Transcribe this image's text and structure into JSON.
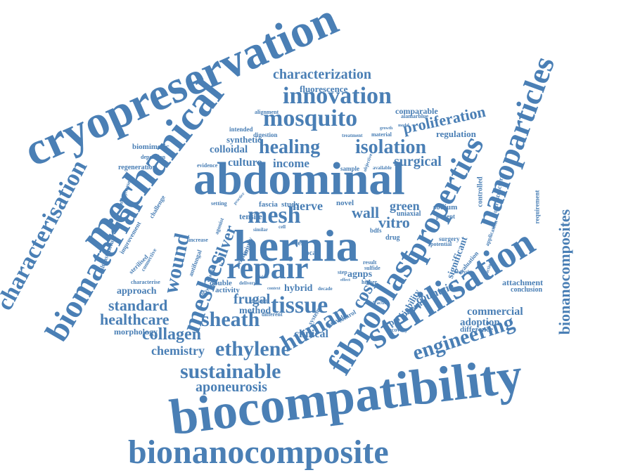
{
  "colors": {
    "word": "#4a7fb5",
    "background": "#ffffff"
  },
  "words": [
    {
      "id": "cryopreservation",
      "text": "cryopreservation"
    },
    {
      "id": "mechanical",
      "text": "mechanical"
    },
    {
      "id": "abdominal",
      "text": "abdominal"
    },
    {
      "id": "hernia",
      "text": "hernia"
    },
    {
      "id": "repair",
      "text": "repair"
    },
    {
      "id": "biocompatibility",
      "text": "biocompatibility"
    },
    {
      "id": "bionanocomposite",
      "text": "bionanocomposite"
    },
    {
      "id": "sterilisation",
      "text": "sterilisation"
    },
    {
      "id": "fibroblast",
      "text": "fibroblast"
    },
    {
      "id": "nanoparticles",
      "text": "nanoparticles"
    },
    {
      "id": "properties",
      "text": "properties"
    },
    {
      "id": "biomaterial",
      "text": "biomaterial"
    },
    {
      "id": "characterisation",
      "text": "characterisation"
    },
    {
      "id": "bionanocomposites",
      "text": "bionanocomposites"
    },
    {
      "id": "innovation",
      "text": "innovation"
    },
    {
      "id": "mosquito",
      "text": "mosquito"
    },
    {
      "id": "characterization",
      "text": "characterization"
    },
    {
      "id": "healing",
      "text": "healing"
    },
    {
      "id": "isolation",
      "text": "isolation"
    },
    {
      "id": "mesh",
      "text": "mesh"
    },
    {
      "id": "meshes",
      "text": "meshes"
    },
    {
      "id": "silver",
      "text": "silver"
    },
    {
      "id": "tissue",
      "text": "tissue"
    },
    {
      "id": "human",
      "text": "human"
    },
    {
      "id": "cost",
      "text": "cost"
    },
    {
      "id": "sheath",
      "text": "sheath"
    },
    {
      "id": "ethylene",
      "text": "ethylene"
    },
    {
      "id": "sustainable",
      "text": "sustainable"
    },
    {
      "id": "aponeurosis",
      "text": "aponeurosis"
    },
    {
      "id": "engineering",
      "text": "engineering"
    },
    {
      "id": "wound",
      "text": "wound"
    },
    {
      "id": "proliferation",
      "text": "proliferation"
    },
    {
      "id": "surgical",
      "text": "surgical"
    },
    {
      "id": "culture",
      "text": "culture"
    },
    {
      "id": "income",
      "text": "income"
    },
    {
      "id": "nerve",
      "text": "nerve"
    },
    {
      "id": "wall",
      "text": "wall"
    },
    {
      "id": "green",
      "text": "green"
    },
    {
      "id": "vitro",
      "text": "vitro"
    },
    {
      "id": "standard",
      "text": "standard"
    },
    {
      "id": "healthcare",
      "text": "healthcare"
    },
    {
      "id": "collagen",
      "text": "collagen"
    },
    {
      "id": "chemistry",
      "text": "chemistry"
    },
    {
      "id": "frugal",
      "text": "frugal"
    },
    {
      "id": "method",
      "text": "method"
    },
    {
      "id": "clinical",
      "text": "clinical"
    },
    {
      "id": "commercial",
      "text": "commercial"
    },
    {
      "id": "adoption",
      "text": "adoption"
    },
    {
      "id": "countrie",
      "text": "countrie"
    },
    {
      "id": "colloidal",
      "text": "colloidal"
    },
    {
      "id": "synthetic",
      "text": "synthetic"
    },
    {
      "id": "fluorescence",
      "text": "fluorescence"
    },
    {
      "id": "comparable",
      "text": "comparable"
    },
    {
      "id": "regulation",
      "text": "regulation"
    },
    {
      "id": "approach",
      "text": "approach"
    },
    {
      "id": "attachment",
      "text": "attachment"
    },
    {
      "id": "hybrid",
      "text": "hybrid"
    },
    {
      "id": "agnps",
      "text": "agnps"
    },
    {
      "id": "morphology",
      "text": "morphology"
    },
    {
      "id": "biomimetic",
      "text": "biomimetic"
    },
    {
      "id": "regeneration",
      "text": "regeneration"
    },
    {
      "id": "study",
      "text": "study"
    },
    {
      "id": "fascia",
      "text": "fascia"
    },
    {
      "id": "tensile",
      "text": "tensile"
    },
    {
      "id": "novel",
      "text": "novel"
    },
    {
      "id": "sodium",
      "text": "sodium"
    },
    {
      "id": "uniaxial",
      "text": "uniaxial"
    },
    {
      "id": "patient",
      "text": "patient"
    },
    {
      "id": "digestion",
      "text": "digestion"
    },
    {
      "id": "intended",
      "text": "intended"
    },
    {
      "id": "evidence",
      "text": "evidence"
    },
    {
      "id": "sample",
      "text": "sample"
    },
    {
      "id": "activity",
      "text": "activity"
    },
    {
      "id": "double",
      "text": "double"
    },
    {
      "id": "difference",
      "text": "difference"
    },
    {
      "id": "conclusion",
      "text": "conclusion"
    },
    {
      "id": "significant",
      "text": "significant"
    },
    {
      "id": "peripheral",
      "text": "peripheral"
    },
    {
      "id": "viability",
      "text": "viability"
    },
    {
      "id": "controlled",
      "text": "controlled"
    },
    {
      "id": "ultrastructural",
      "text": "ultrastructural"
    },
    {
      "id": "requirement",
      "text": "requirement"
    },
    {
      "id": "surgery",
      "text": "surgery"
    },
    {
      "id": "alamarblue",
      "text": "alamarblue"
    },
    {
      "id": "treatment",
      "text": "treatment"
    },
    {
      "id": "material",
      "text": "material"
    },
    {
      "id": "alignment",
      "text": "alignment"
    },
    {
      "id": "deposition",
      "text": "deposition"
    },
    {
      "id": "collagenase",
      "text": "collagenase"
    },
    {
      "id": "sulfide",
      "text": "sulfide"
    },
    {
      "id": "result",
      "text": "result"
    },
    {
      "id": "test",
      "text": "test"
    },
    {
      "id": "local",
      "text": "local"
    },
    {
      "id": "drug",
      "text": "drug"
    },
    {
      "id": "cellular",
      "text": "cellular"
    },
    {
      "id": "injury",
      "text": "injury"
    },
    {
      "id": "setting",
      "text": "setting"
    },
    {
      "id": "characterise",
      "text": "characterise"
    },
    {
      "id": "sterilised",
      "text": "sterilised"
    },
    {
      "id": "ultrastructure",
      "text": "ultrastructure"
    },
    {
      "id": "improvement",
      "text": "improvement"
    },
    {
      "id": "challenge",
      "text": "challenge"
    },
    {
      "id": "antifungal",
      "text": "antifungal"
    },
    {
      "id": "connective",
      "text": "connective"
    },
    {
      "id": "develop",
      "text": "develop"
    },
    {
      "id": "detailed",
      "text": "detailed"
    },
    {
      "id": "delivery",
      "text": "delivery"
    },
    {
      "id": "decade",
      "text": "decade"
    },
    {
      "id": "fraction",
      "text": "fraction"
    },
    {
      "id": "provide",
      "text": "provide"
    },
    {
      "id": "control",
      "text": "control"
    },
    {
      "id": "system",
      "text": "system"
    },
    {
      "id": "different",
      "text": "different"
    },
    {
      "id": "recovery",
      "text": "recovery"
    },
    {
      "id": "higher",
      "text": "higher"
    },
    {
      "id": "analysis",
      "text": "analysis"
    },
    {
      "id": "functional",
      "text": "functional"
    },
    {
      "id": "evaluation",
      "text": "evaluation"
    },
    {
      "id": "application",
      "text": "application"
    },
    {
      "id": "potential",
      "text": "potential"
    },
    {
      "id": "increase",
      "text": "increase"
    },
    {
      "id": "agonist",
      "text": "agonist"
    },
    {
      "id": "cell",
      "text": "cell"
    },
    {
      "id": "growth",
      "text": "growth"
    },
    {
      "id": "available",
      "text": "available"
    },
    {
      "id": "objective",
      "text": "objective"
    },
    {
      "id": "model",
      "text": "model"
    },
    {
      "id": "similar",
      "text": "similar"
    },
    {
      "id": "step",
      "text": "step"
    },
    {
      "id": "effect",
      "text": "effect"
    },
    {
      "id": "middle",
      "text": "middle"
    },
    {
      "id": "context",
      "text": "context"
    },
    {
      "id": "practice",
      "text": "practice"
    },
    {
      "id": "bdfs",
      "text": "bdfs"
    },
    {
      "id": "effective",
      "text": "effective"
    }
  ]
}
